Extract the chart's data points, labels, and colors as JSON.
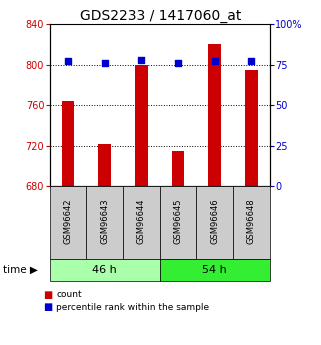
{
  "title": "GDS2233 / 1417060_at",
  "samples": [
    "GSM96642",
    "GSM96643",
    "GSM96644",
    "GSM96645",
    "GSM96646",
    "GSM96648"
  ],
  "counts": [
    764,
    722,
    800,
    715,
    820,
    795
  ],
  "percentiles": [
    77,
    76,
    78,
    76,
    77,
    77
  ],
  "groups": [
    {
      "label": "46 h",
      "indices": [
        0,
        1,
        2
      ],
      "color": "#aaffaa"
    },
    {
      "label": "54 h",
      "indices": [
        3,
        4,
        5
      ],
      "color": "#33ee33"
    }
  ],
  "ylim_left": [
    680,
    840
  ],
  "ylim_right": [
    0,
    100
  ],
  "yticks_left": [
    680,
    720,
    760,
    800,
    840
  ],
  "yticks_right": [
    0,
    25,
    50,
    75,
    100
  ],
  "yticklabels_right": [
    "0",
    "25",
    "50",
    "75",
    "100%"
  ],
  "bar_color": "#cc0000",
  "dot_color": "#0000cc",
  "bar_width": 0.35,
  "background_color": "#ffffff",
  "plot_bg_color": "#ffffff",
  "legend_count_label": "count",
  "legend_pct_label": "percentile rank within the sample",
  "title_fontsize": 10,
  "tick_fontsize": 7,
  "label_fontsize": 7,
  "sample_fontsize": 6,
  "group_fontsize": 8
}
